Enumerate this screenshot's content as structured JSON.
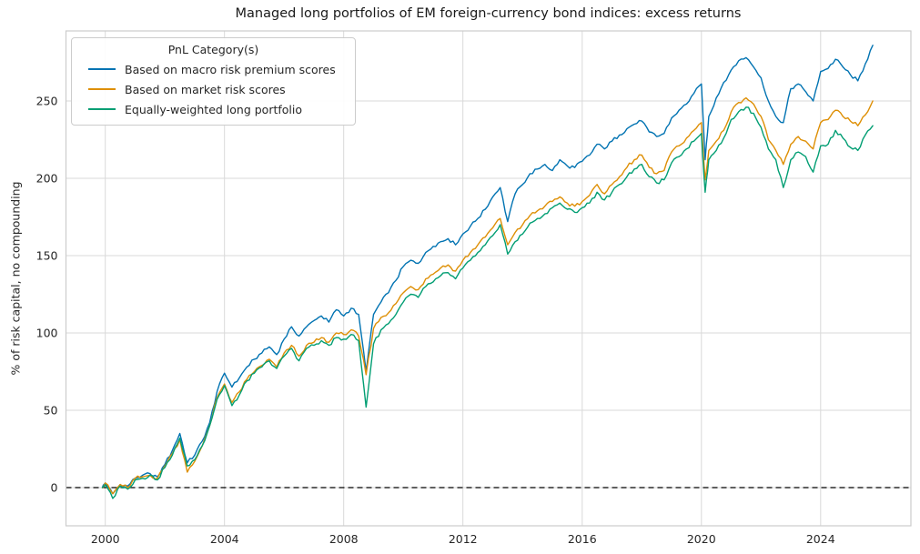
{
  "page": {
    "background": "#ffffff"
  },
  "chart_data": {
    "type": "line",
    "title": "Managed long portfolios of EM foreign-currency bond indices: excess returns",
    "xlabel": "",
    "ylabel": "% of risk capital, no compounding",
    "legend_title": "PnL Category(s)",
    "legend_position": "upper left",
    "grid": true,
    "zero_line": {
      "value": 0,
      "style": "dashed",
      "color": "#000000"
    },
    "xlim": [
      1998.68,
      2027.03
    ],
    "ylim": [
      -24.7,
      295.3
    ],
    "x_ticks": [
      2000,
      2004,
      2008,
      2012,
      2016,
      2020,
      2024
    ],
    "y_ticks": [
      0,
      50,
      100,
      150,
      200,
      250
    ],
    "style": {
      "grid_color": "#d9d9d9",
      "spine_color": "#cccccc",
      "text_color": "#262626",
      "line_width": 1.4
    },
    "x": [
      1999.9,
      2000,
      2000.25,
      2000.5,
      2000.75,
      2001,
      2001.25,
      2001.5,
      2001.75,
      2002,
      2002.25,
      2002.5,
      2002.75,
      2003,
      2003.25,
      2003.5,
      2003.75,
      2004,
      2004.25,
      2004.5,
      2004.75,
      2005,
      2005.25,
      2005.5,
      2005.75,
      2006,
      2006.25,
      2006.5,
      2006.75,
      2007,
      2007.25,
      2007.5,
      2007.75,
      2008,
      2008.25,
      2008.5,
      2008.75,
      2009,
      2009.25,
      2009.5,
      2009.75,
      2010,
      2010.25,
      2010.5,
      2010.75,
      2011,
      2011.25,
      2011.5,
      2011.75,
      2012,
      2012.25,
      2012.5,
      2012.75,
      2013,
      2013.25,
      2013.5,
      2013.75,
      2014,
      2014.25,
      2014.5,
      2014.75,
      2015,
      2015.25,
      2015.5,
      2015.75,
      2016,
      2016.25,
      2016.5,
      2016.75,
      2017,
      2017.25,
      2017.5,
      2017.75,
      2018,
      2018.25,
      2018.5,
      2018.75,
      2019,
      2019.25,
      2019.5,
      2019.75,
      2020,
      2020.125,
      2020.25,
      2020.5,
      2020.75,
      2021,
      2021.25,
      2021.5,
      2021.75,
      2022,
      2022.25,
      2022.5,
      2022.75,
      2023,
      2023.25,
      2023.5,
      2023.75,
      2024,
      2024.25,
      2024.5,
      2024.75,
      2025,
      2025.25,
      2025.5,
      2025.75
    ],
    "series": [
      {
        "name": "Based on macro risk premium scores",
        "color": "#0173b2",
        "values": [
          0,
          3,
          -4,
          2,
          1,
          6,
          8,
          9,
          7,
          15,
          24,
          35,
          16,
          21,
          30,
          42,
          62,
          74,
          65,
          71,
          78,
          83,
          87,
          91,
          86,
          96,
          104,
          98,
          104,
          108,
          111,
          107,
          115,
          111,
          116,
          112,
          75,
          112,
          120,
          126,
          134,
          143,
          147,
          145,
          152,
          156,
          159,
          161,
          157,
          164,
          169,
          174,
          180,
          188,
          194,
          172,
          190,
          196,
          203,
          206,
          209,
          205,
          212,
          208,
          207,
          211,
          215,
          222,
          219,
          224,
          228,
          232,
          235,
          237,
          230,
          227,
          229,
          239,
          244,
          248,
          255,
          261,
          212,
          240,
          252,
          262,
          270,
          276,
          278,
          272,
          265,
          250,
          240,
          236,
          258,
          261,
          256,
          250,
          269,
          271,
          277,
          272,
          267,
          263,
          274,
          286
        ]
      },
      {
        "name": "Based on market risk scores",
        "color": "#de8f05",
        "values": [
          0,
          3,
          -4,
          2,
          0,
          6,
          7,
          8,
          6,
          14,
          22,
          31,
          10,
          17,
          27,
          40,
          58,
          67,
          55,
          62,
          70,
          75,
          79,
          83,
          78,
          87,
          92,
          85,
          92,
          94,
          97,
          94,
          100,
          99,
          102,
          98,
          73,
          103,
          110,
          113,
          119,
          126,
          130,
          128,
          135,
          138,
          142,
          144,
          140,
          147,
          152,
          157,
          162,
          168,
          174,
          157,
          165,
          170,
          176,
          179,
          182,
          185,
          188,
          184,
          182,
          185,
          189,
          196,
          190,
          196,
          201,
          207,
          212,
          215,
          207,
          203,
          205,
          217,
          221,
          226,
          231,
          236,
          199,
          218,
          224,
          231,
          243,
          249,
          252,
          248,
          240,
          225,
          218,
          209,
          222,
          227,
          224,
          219,
          236,
          238,
          244,
          240,
          237,
          234,
          241,
          250
        ]
      },
      {
        "name": "Equally-weighted long portfolio",
        "color": "#029e73",
        "values": [
          0,
          2,
          -7,
          1,
          -1,
          5,
          6,
          8,
          5,
          13,
          21,
          32,
          14,
          18,
          27,
          40,
          57,
          66,
          53,
          60,
          69,
          74,
          78,
          82,
          77,
          85,
          90,
          82,
          90,
          92,
          95,
          92,
          97,
          96,
          99,
          95,
          52,
          93,
          102,
          106,
          112,
          120,
          125,
          123,
          130,
          133,
          137,
          139,
          135,
          142,
          147,
          152,
          157,
          163,
          170,
          151,
          159,
          164,
          171,
          174,
          177,
          181,
          184,
          180,
          178,
          181,
          184,
          191,
          186,
          191,
          196,
          201,
          206,
          209,
          201,
          197,
          199,
          210,
          214,
          219,
          224,
          229,
          191,
          212,
          218,
          226,
          238,
          243,
          246,
          242,
          233,
          219,
          212,
          194,
          212,
          217,
          214,
          204,
          221,
          222,
          231,
          226,
          220,
          218,
          228,
          234
        ]
      }
    ]
  }
}
